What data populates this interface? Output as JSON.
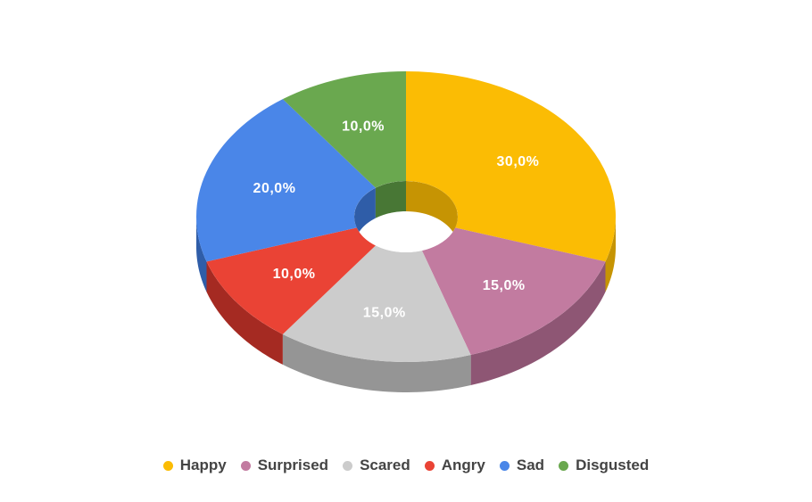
{
  "chart_data": {
    "type": "pie",
    "variant": "3d-donut",
    "label_format": "percent-comma-decimal",
    "slices": [
      {
        "name": "Happy",
        "value": 30.0,
        "label": "30,0%",
        "color": "#FBBC04",
        "side_color": "#C69403"
      },
      {
        "name": "Surprised",
        "value": 15.0,
        "label": "15,0%",
        "color": "#C27BA0",
        "side_color": "#8E5674"
      },
      {
        "name": "Scared",
        "value": 15.0,
        "label": "15,0%",
        "color": "#CCCCCC",
        "side_color": "#959595"
      },
      {
        "name": "Angry",
        "value": 10.0,
        "label": "10,0%",
        "color": "#EA4335",
        "side_color": "#A52A22"
      },
      {
        "name": "Sad",
        "value": 20.0,
        "label": "20,0%",
        "color": "#4A86E8",
        "side_color": "#2F5DA8"
      },
      {
        "name": "Disgusted",
        "value": 10.0,
        "label": "10,0%",
        "color": "#6AA84F",
        "side_color": "#487735"
      }
    ],
    "legend_placement": "bottom",
    "title": ""
  }
}
